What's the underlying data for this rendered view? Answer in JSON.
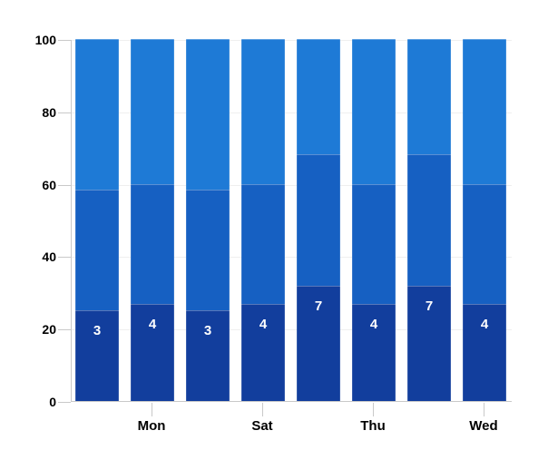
{
  "chart_data": {
    "type": "bar",
    "variant": "stacked-100-percent-columns",
    "legend": "none",
    "grid": true,
    "y_axis": {
      "range": [
        0,
        100
      ],
      "ticks": [
        0,
        20,
        40,
        60,
        80,
        100
      ]
    },
    "x_axis": {
      "tick_labels": [
        "Mon",
        "Sat",
        "Thu",
        "Wed"
      ],
      "labeled_bar_indices": [
        1,
        3,
        5,
        7
      ]
    },
    "bars": [
      {
        "category": "",
        "segments": [
          {
            "pct": 25.0,
            "label": "3"
          },
          {
            "pct": 33.5
          },
          {
            "pct": 41.5
          }
        ]
      },
      {
        "category": "Mon",
        "segments": [
          {
            "pct": 26.7,
            "label": "4"
          },
          {
            "pct": 33.3
          },
          {
            "pct": 40.0
          }
        ]
      },
      {
        "category": "",
        "segments": [
          {
            "pct": 25.0,
            "label": "3"
          },
          {
            "pct": 33.5
          },
          {
            "pct": 41.5
          }
        ]
      },
      {
        "category": "Sat",
        "segments": [
          {
            "pct": 26.7,
            "label": "4"
          },
          {
            "pct": 33.3
          },
          {
            "pct": 40.0
          }
        ]
      },
      {
        "category": "",
        "segments": [
          {
            "pct": 31.8,
            "label": "7"
          },
          {
            "pct": 36.4
          },
          {
            "pct": 31.8
          }
        ]
      },
      {
        "category": "Thu",
        "segments": [
          {
            "pct": 26.7,
            "label": "4"
          },
          {
            "pct": 33.3
          },
          {
            "pct": 40.0
          }
        ]
      },
      {
        "category": "",
        "segments": [
          {
            "pct": 31.8,
            "label": "7"
          },
          {
            "pct": 36.4
          },
          {
            "pct": 31.8
          }
        ]
      },
      {
        "category": "Wed",
        "segments": [
          {
            "pct": 26.7,
            "label": "4"
          },
          {
            "pct": 33.3
          },
          {
            "pct": 40.0
          }
        ]
      }
    ],
    "colors": {
      "segment_bottom": "#123E9D",
      "segment_middle": "#1660C2",
      "segment_top": "#1E7AD6",
      "axis_line": "#C9C9C9",
      "gridline": "#EFEFEF",
      "axis_text": "#000000",
      "bar_label_text": "#FFFFFF",
      "background": "#FFFFFF"
    }
  }
}
